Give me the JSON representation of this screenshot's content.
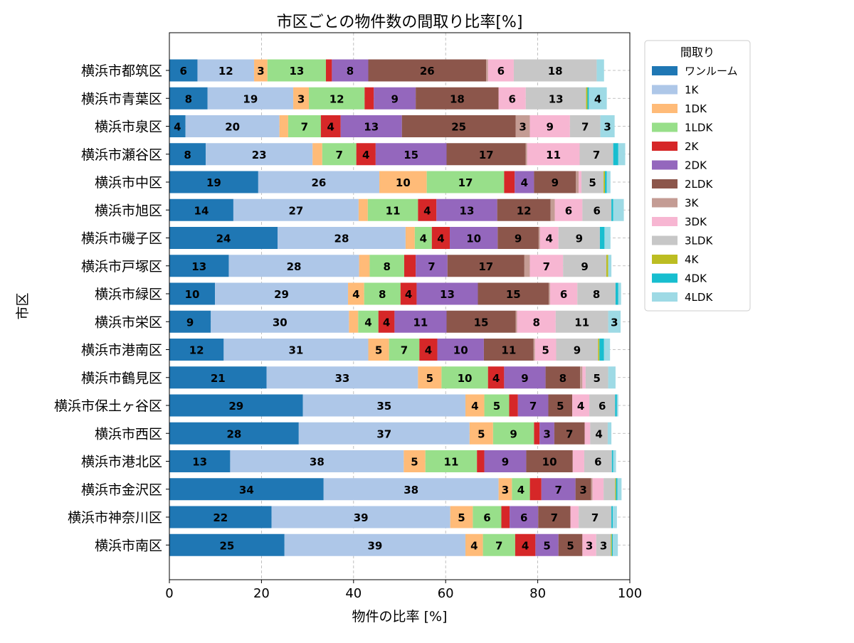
{
  "chart_data": {
    "type": "bar",
    "orientation": "horizontal",
    "stacked": true,
    "title": "市区ごとの物件数の間取り比率[%]",
    "xlabel": "物件の比率 [%]",
    "ylabel": "市区",
    "xlim": [
      0,
      100
    ],
    "xticks": [
      0,
      20,
      40,
      60,
      80,
      100
    ],
    "grid": true,
    "legend_title": "間取り",
    "legend_position": "outside-top-right",
    "categories": [
      "横浜市都筑区",
      "横浜市青葉区",
      "横浜市泉区",
      "横浜市瀬谷区",
      "横浜市中区",
      "横浜市旭区",
      "横浜市磯子区",
      "横浜市戸塚区",
      "横浜市緑区",
      "横浜市栄区",
      "横浜市港南区",
      "横浜市鶴見区",
      "横浜市保土ヶ谷区",
      "横浜市西区",
      "横浜市港北区",
      "横浜市金沢区",
      "横浜市神奈川区",
      "横浜市南区"
    ],
    "series": [
      {
        "name": "ワンルーム",
        "color": "#1f77b4",
        "values": [
          6.1,
          8.3,
          3.5,
          7.9,
          19.3,
          13.9,
          23.5,
          12.9,
          9.9,
          9.0,
          11.8,
          21.1,
          29.0,
          28.1,
          13.2,
          33.5,
          22.2,
          25.0
        ]
      },
      {
        "name": "1K",
        "color": "#aec7e8",
        "values": [
          12.3,
          18.6,
          20.4,
          23.2,
          26.3,
          27.2,
          27.8,
          28.3,
          28.9,
          30.0,
          31.4,
          32.9,
          35.3,
          37.1,
          37.7,
          38.0,
          38.8,
          39.3
        ]
      },
      {
        "name": "1DK",
        "color": "#ffbb78",
        "values": [
          2.9,
          3.4,
          1.9,
          2.1,
          10.3,
          2.0,
          2.0,
          2.3,
          3.5,
          2.0,
          4.5,
          5.1,
          4.1,
          5.1,
          4.7,
          2.9,
          4.9,
          3.8
        ]
      },
      {
        "name": "1LDK",
        "color": "#98df8a",
        "values": [
          12.7,
          12.1,
          7.1,
          7.4,
          16.8,
          10.9,
          3.7,
          7.5,
          7.9,
          4.4,
          6.6,
          10.1,
          5.4,
          8.9,
          11.2,
          3.9,
          6.2,
          7.0
        ]
      },
      {
        "name": "2K",
        "color": "#d62728",
        "values": [
          1.3,
          2.0,
          4.3,
          4.2,
          2.3,
          4.0,
          3.9,
          2.5,
          3.5,
          3.5,
          3.9,
          3.5,
          1.9,
          1.2,
          1.6,
          2.5,
          1.8,
          4.4
        ]
      },
      {
        "name": "2DK",
        "color": "#9467bd",
        "values": [
          7.9,
          9.1,
          13.3,
          15.4,
          4.2,
          13.2,
          10.4,
          6.9,
          13.3,
          11.3,
          10.1,
          9.0,
          6.6,
          3.2,
          9.1,
          7.4,
          6.2,
          5.0
        ]
      },
      {
        "name": "2LDK",
        "color": "#8c564b",
        "values": [
          25.6,
          18.0,
          24.7,
          17.2,
          9.1,
          11.6,
          8.9,
          16.7,
          15.4,
          15.0,
          10.8,
          7.5,
          5.2,
          6.6,
          10.1,
          3.4,
          7.0,
          5.2
        ]
      },
      {
        "name": "3K",
        "color": "#c49c94",
        "values": [
          0.4,
          0.0,
          3.1,
          0.3,
          0.6,
          0.9,
          0.3,
          1.2,
          0.3,
          0.3,
          0.3,
          0.5,
          0.0,
          0.0,
          0.0,
          0.3,
          0.0,
          0.0
        ]
      },
      {
        "name": "3DK",
        "color": "#f7b6d2",
        "values": [
          5.6,
          5.9,
          8.7,
          11.4,
          0.6,
          6.0,
          4.0,
          7.2,
          5.9,
          8.4,
          4.6,
          0.7,
          3.7,
          1.2,
          2.5,
          2.4,
          1.8,
          3.0
        ]
      },
      {
        "name": "3LDK",
        "color": "#c7c7c7",
        "values": [
          18.0,
          13.1,
          6.6,
          7.3,
          4.8,
          6.3,
          9.0,
          9.4,
          8.3,
          11.4,
          9.1,
          4.9,
          5.6,
          3.8,
          6.0,
          2.5,
          7.1,
          3.2
        ]
      },
      {
        "name": "4K",
        "color": "#bcbd22",
        "values": [
          0.0,
          0.3,
          0.0,
          0.0,
          0.3,
          0.0,
          0.0,
          0.4,
          0.0,
          0.0,
          0.3,
          0.0,
          0.0,
          0.0,
          0.0,
          0.2,
          0.0,
          0.2
        ]
      },
      {
        "name": "4DK",
        "color": "#17becf",
        "values": [
          0.0,
          0.3,
          0.0,
          1.1,
          0.4,
          0.4,
          1.0,
          0.0,
          0.6,
          0.0,
          1.0,
          0.0,
          0.4,
          0.0,
          0.3,
          0.3,
          0.3,
          0.2
        ]
      },
      {
        "name": "4LDK",
        "color": "#9edae5",
        "values": [
          1.6,
          3.9,
          3.1,
          1.5,
          0.8,
          2.3,
          1.3,
          0.7,
          0.6,
          2.7,
          1.3,
          1.6,
          0.3,
          0.8,
          0.6,
          0.9,
          0.9,
          1.1
        ]
      }
    ],
    "label_threshold": 2.7
  }
}
